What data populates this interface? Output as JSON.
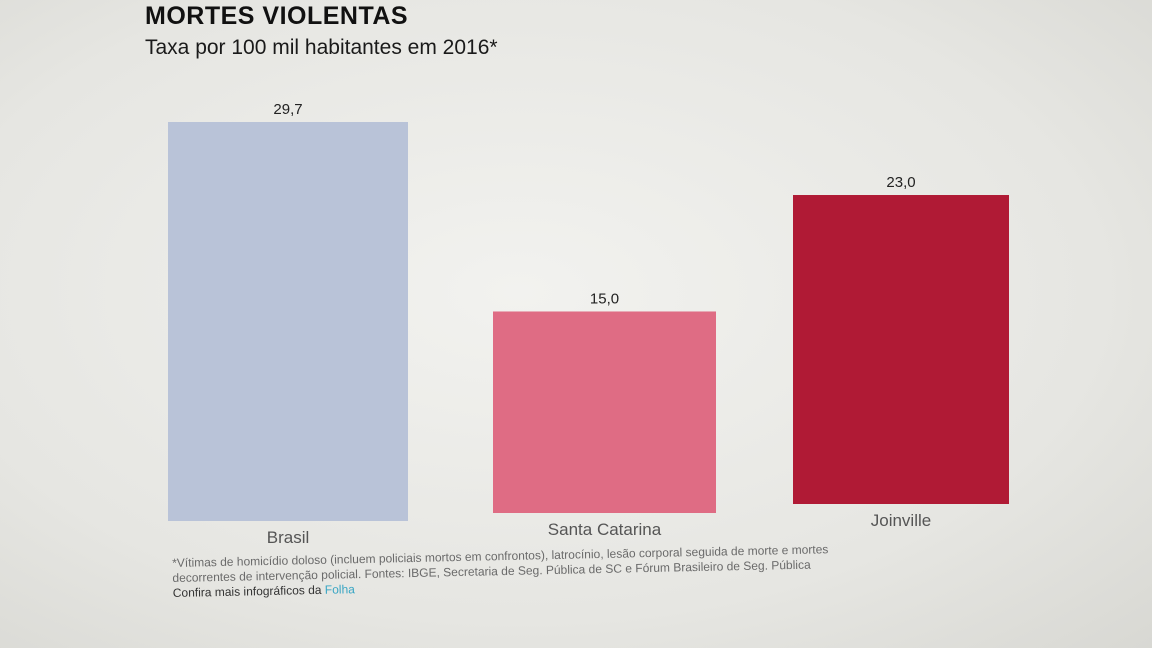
{
  "title": "MORTES VIOLENTAS",
  "subtitle": "Taxa por 100 mil habitantes em 2016*",
  "footnote": {
    "note_line1": "*Vítimas de homicídio doloso (incluem policiais mortos em confrontos), latrocínio, lesão corporal seguida de morte e mortes",
    "note_line2": "decorrentes de intervenção policial. Fontes: IBGE, Secretaria de Seg. Pública de SC e Fórum Brasileiro de Seg. Pública",
    "more_text": "Confira mais infográficos da ",
    "brand": "Folha"
  },
  "chart_data": {
    "type": "bar",
    "title": "MORTES VIOLENTAS",
    "subtitle": "Taxa por 100 mil habitantes em 2016*",
    "categories": [
      "Brasil",
      "Santa Catarina",
      "Joinville"
    ],
    "values": [
      29.7,
      15.0,
      23.0
    ],
    "value_labels": [
      "29,7",
      "15,0",
      "23,0"
    ],
    "colors": [
      "#b9c3d8",
      "#df6c84",
      "#b01a35"
    ],
    "ylim": [
      0,
      29.7
    ],
    "grid": false,
    "legend": "none"
  }
}
